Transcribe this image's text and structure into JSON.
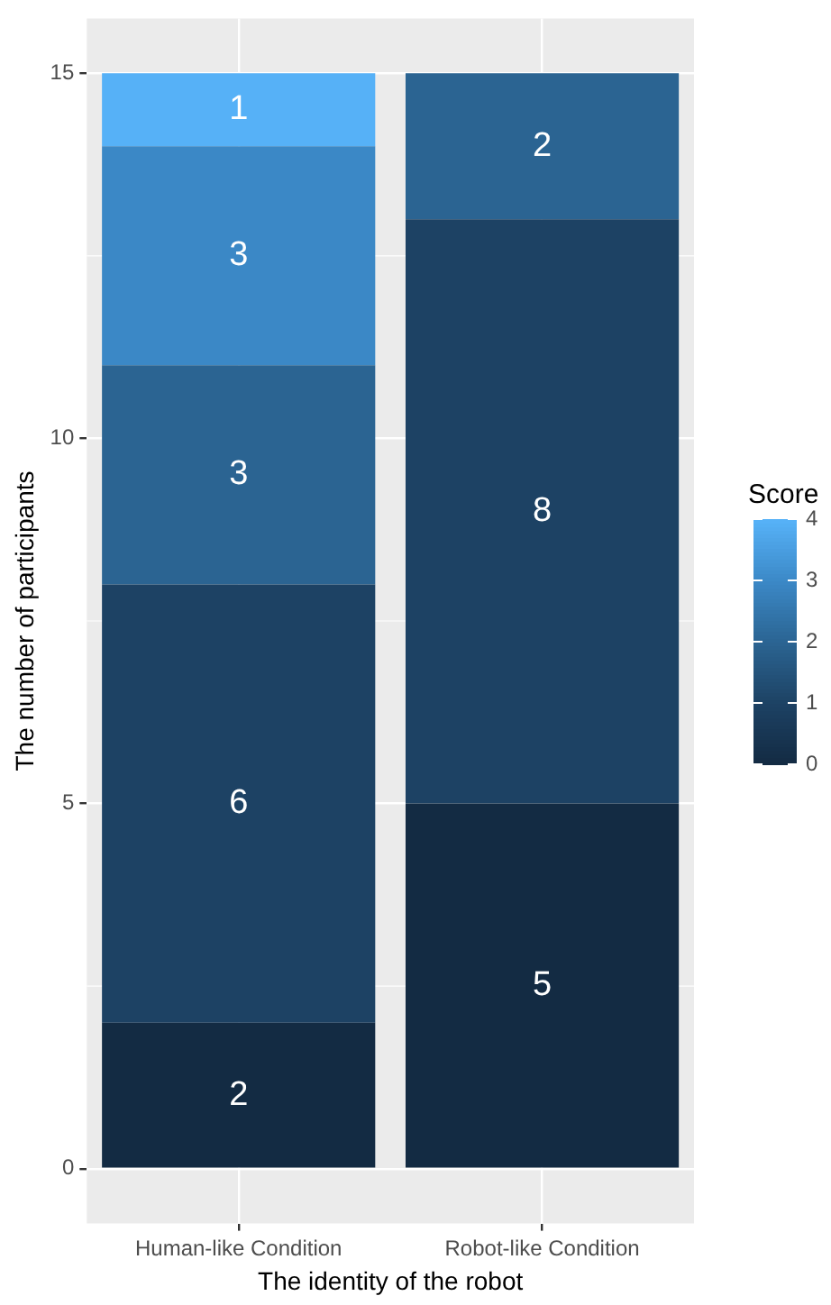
{
  "chart_data": {
    "type": "bar",
    "stacked": true,
    "xlabel": "The identity of the robot",
    "ylabel": "The number of participants",
    "categories": [
      "Human-like Condition",
      "Robot-like Condition"
    ],
    "series": [
      {
        "color": "#132b43",
        "values": [
          2,
          5
        ]
      },
      {
        "color": "#1d4264",
        "values": [
          6,
          8
        ]
      },
      {
        "color": "#2b6492",
        "values": [
          3,
          2
        ]
      },
      {
        "color": "#3b88c6",
        "values": [
          3,
          null
        ]
      },
      {
        "color": "#56b1f7",
        "values": [
          1,
          null
        ]
      }
    ],
    "ylim": [
      -0.75,
      15.75
    ],
    "yticks": [
      0,
      5,
      10,
      15
    ],
    "data_labels": true,
    "grid": true,
    "clabel": "Score",
    "clim": [
      0,
      4
    ],
    "cticks": [
      0,
      1,
      2,
      3,
      4
    ]
  }
}
